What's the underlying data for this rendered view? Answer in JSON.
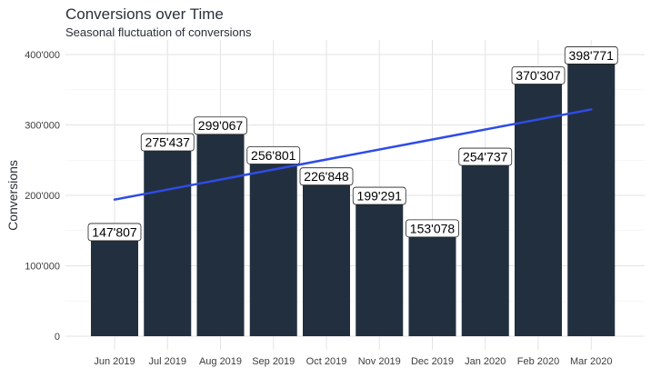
{
  "chart_data": {
    "type": "bar",
    "title": "Conversions over Time",
    "subtitle": "Seasonal fluctuation of conversions",
    "xlabel": "",
    "ylabel": "Conversions",
    "categories": [
      "Jun 2019",
      "Jul 2019",
      "Aug 2019",
      "Sep 2019",
      "Oct 2019",
      "Nov 2019",
      "Dec 2019",
      "Jan 2020",
      "Feb 2020",
      "Mar 2020"
    ],
    "values": [
      147807,
      275437,
      299067,
      256801,
      226848,
      199291,
      153078,
      254737,
      370307,
      398771
    ],
    "value_labels": [
      "147'807",
      "275'437",
      "299'067",
      "256'801",
      "226'848",
      "199'291",
      "153'078",
      "254'737",
      "370'307",
      "398'771"
    ],
    "ylim": [
      0,
      420000
    ],
    "yticks": [
      0,
      100000,
      200000,
      300000,
      400000
    ],
    "ytick_labels": [
      "0",
      "100'000",
      "200'000",
      "300'000",
      "400'000"
    ],
    "trend_line": {
      "start": 194000,
      "end": 322000
    },
    "grid": true,
    "colors": {
      "bar": "#222f3e",
      "trend": "#2e4ce6",
      "grid": "#e3e3e3"
    }
  }
}
